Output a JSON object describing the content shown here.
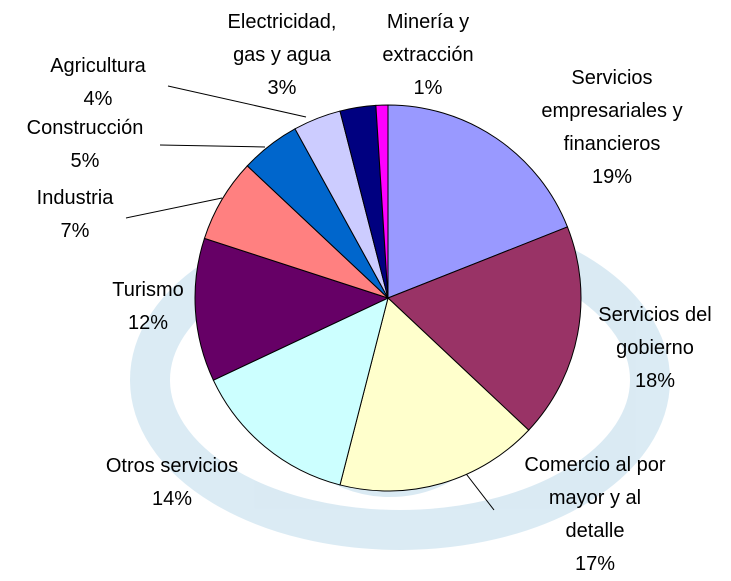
{
  "chart_data": {
    "type": "pie",
    "categories": [
      "Servicios\nempresariales y\nfinancieros",
      "Servicios del\ngobierno",
      "Comercio al por\nmayor y al\ndetalle",
      "Otros servicios",
      "Turismo",
      "Industria",
      "Construcción",
      "Agricultura",
      "Electricidad,\ngas y agua",
      "Minería y\nextracción"
    ],
    "values": [
      19,
      18,
      17,
      14,
      12,
      7,
      5,
      4,
      3,
      1
    ],
    "value_labels": [
      "19%",
      "18%",
      "17%",
      "14%",
      "12%",
      "7%",
      "5%",
      "4%",
      "3%",
      "1%"
    ],
    "colors": [
      "#9999ff",
      "#993366",
      "#ffffcc",
      "#ccffff",
      "#660066",
      "#ff8080",
      "#0066cc",
      "#ccccff",
      "#000080",
      "#ff00ff"
    ]
  }
}
